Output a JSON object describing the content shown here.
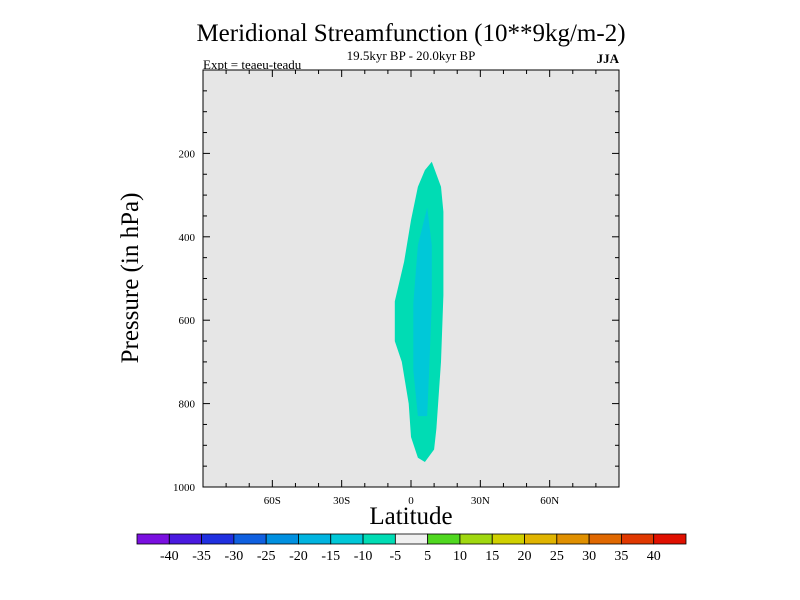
{
  "chart_data": {
    "type": "contour",
    "title": "Meridional Streamfunction (10**9kg/m-2)",
    "subtitle": "19.5kyr BP - 20.0kyr BP",
    "experiment": "Expt = teaeu-teadu",
    "season": "JJA",
    "xlabel": "Latitude",
    "ylabel": "Pressure (in hPa)",
    "xlim": [
      -90,
      90
    ],
    "ylim": [
      0,
      1000
    ],
    "y_inverted": true,
    "x_ticks": [
      {
        "value": -60,
        "label": "60S"
      },
      {
        "value": -30,
        "label": "30S"
      },
      {
        "value": 0,
        "label": "0"
      },
      {
        "value": 30,
        "label": "30N"
      },
      {
        "value": 60,
        "label": "60N"
      }
    ],
    "y_ticks": [
      {
        "value": 200,
        "label": "200"
      },
      {
        "value": 400,
        "label": "400"
      },
      {
        "value": 600,
        "label": "600"
      },
      {
        "value": 800,
        "label": "800"
      },
      {
        "value": 1000,
        "label": "1000"
      }
    ],
    "background_level": "-5 to 5",
    "contour_regions": [
      {
        "level": "-10 to -5",
        "color": "#00dcb4",
        "points": [
          [
            9,
            220
          ],
          [
            13,
            280
          ],
          [
            14,
            340
          ],
          [
            14,
            540
          ],
          [
            13,
            700
          ],
          [
            11,
            860
          ],
          [
            10,
            910
          ],
          [
            6,
            940
          ],
          [
            3,
            930
          ],
          [
            0,
            880
          ],
          [
            -1,
            800
          ],
          [
            -4,
            700
          ],
          [
            -7,
            650
          ],
          [
            -7,
            555
          ],
          [
            -3,
            460
          ],
          [
            0,
            360
          ],
          [
            3,
            280
          ],
          [
            6,
            240
          ]
        ]
      },
      {
        "level": "-15 to -10",
        "color": "#00c8d8",
        "points": [
          [
            7,
            330
          ],
          [
            9,
            420
          ],
          [
            9,
            560
          ],
          [
            8,
            700
          ],
          [
            7,
            830
          ],
          [
            3,
            830
          ],
          [
            1,
            720
          ],
          [
            1,
            560
          ],
          [
            3,
            420
          ]
        ]
      }
    ],
    "colorbar": {
      "labels": [
        "-40",
        "-35",
        "-30",
        "-25",
        "-20",
        "-15",
        "-10",
        "-5",
        "5",
        "10",
        "15",
        "20",
        "25",
        "30",
        "35",
        "40"
      ],
      "colors": [
        "#7a10e0",
        "#4a1ae0",
        "#2030e0",
        "#1060e0",
        "#0090e0",
        "#00b4e0",
        "#00c8d8",
        "#00dcb4",
        "#f0f0f0",
        "#50d820",
        "#a0d810",
        "#d0d000",
        "#e0b400",
        "#e09000",
        "#e06800",
        "#e03800",
        "#e01000"
      ]
    }
  }
}
